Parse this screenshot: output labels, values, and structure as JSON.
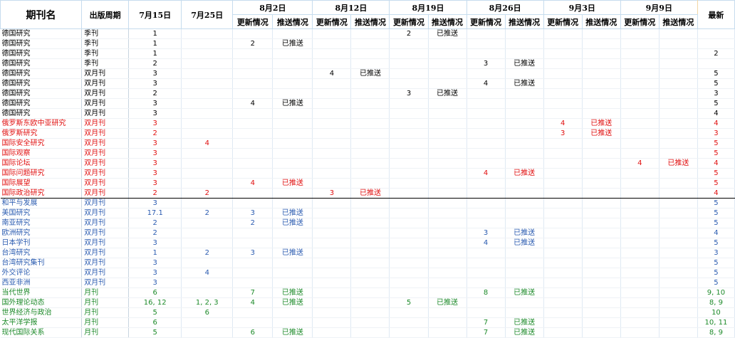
{
  "header": {
    "name": "期刊名",
    "period": "出版周期",
    "jul15": "7月15日",
    "jul25": "7月25日",
    "dates": [
      "8月2日",
      "8月12日",
      "8月19日",
      "8月26日",
      "9月3日",
      "9月9日"
    ],
    "update": "更新情况",
    "push": "推送情况",
    "latest": "最新"
  },
  "rows": [
    {
      "name": "德国研究",
      "period": "季刊",
      "jul15": "1",
      "jul25": "",
      "u": [
        "",
        "",
        "2",
        "",
        "",
        ""
      ],
      "p": [
        "",
        "",
        "已推送",
        "",
        "",
        ""
      ],
      "latest": ""
    },
    {
      "name": "德国研究",
      "period": "季刊",
      "jul15": "1",
      "jul25": "",
      "u": [
        "2",
        "",
        "",
        "",
        "",
        ""
      ],
      "p": [
        "已推送",
        "",
        "",
        "",
        "",
        ""
      ],
      "latest": ""
    },
    {
      "name": "德国研究",
      "period": "季刊",
      "jul15": "1",
      "jul25": "",
      "u": [
        "",
        "",
        "",
        "",
        "",
        ""
      ],
      "p": [
        "",
        "",
        "",
        "",
        "",
        ""
      ],
      "latest": "2"
    },
    {
      "name": "德国研究",
      "period": "季刊",
      "jul15": "2",
      "jul25": "",
      "u": [
        "",
        "",
        "",
        "3",
        "",
        ""
      ],
      "p": [
        "",
        "",
        "",
        "已推送",
        "",
        ""
      ],
      "latest": ""
    },
    {
      "name": "德国研究",
      "period": "双月刊",
      "jul15": "3",
      "jul25": "",
      "u": [
        "",
        "4",
        "",
        "",
        "",
        ""
      ],
      "p": [
        "",
        "已推送",
        "",
        "",
        "",
        ""
      ],
      "latest": "5"
    },
    {
      "name": "德国研究",
      "period": "双月刊",
      "jul15": "3",
      "jul25": "",
      "u": [
        "",
        "",
        "",
        "4",
        "",
        ""
      ],
      "p": [
        "",
        "",
        "",
        "已推送",
        "",
        ""
      ],
      "latest": "5"
    },
    {
      "name": "德国研究",
      "period": "双月刊",
      "jul15": "2",
      "jul25": "",
      "u": [
        "",
        "",
        "3",
        "",
        "",
        ""
      ],
      "p": [
        "",
        "",
        "已推送",
        "",
        "",
        ""
      ],
      "latest": "3"
    },
    {
      "name": "德国研究",
      "period": "双月刊",
      "jul15": "3",
      "jul25": "",
      "u": [
        "4",
        "",
        "",
        "",
        "",
        ""
      ],
      "p": [
        "已推送",
        "",
        "",
        "",
        "",
        ""
      ],
      "latest": "5"
    },
    {
      "name": "德国研究",
      "period": "双月刊",
      "jul15": "3",
      "jul25": "",
      "u": [
        "",
        "",
        "",
        "",
        "",
        ""
      ],
      "p": [
        "",
        "",
        "",
        "",
        "",
        ""
      ],
      "latest": "4"
    },
    {
      "name": "俄罗斯东欧中亚研究",
      "period": "双月刊",
      "jul15": "3",
      "jul25": "",
      "u": [
        "",
        "",
        "",
        "",
        "4",
        ""
      ],
      "p": [
        "",
        "",
        "",
        "",
        "已推送",
        ""
      ],
      "latest": "4"
    },
    {
      "name": "俄罗斯研究",
      "period": "双月刊",
      "jul15": "2",
      "jul25": "",
      "u": [
        "",
        "",
        "",
        "",
        "3",
        ""
      ],
      "p": [
        "",
        "",
        "",
        "",
        "已推送",
        ""
      ],
      "latest": "3"
    },
    {
      "name": "国际安全研究",
      "period": "双月刊",
      "jul15": "3",
      "jul25": "4",
      "u": [
        "",
        "",
        "",
        "",
        "",
        ""
      ],
      "p": [
        "",
        "",
        "",
        "",
        "",
        ""
      ],
      "latest": "5"
    },
    {
      "name": "国际观察",
      "period": "双月刊",
      "jul15": "3",
      "jul25": "",
      "u": [
        "",
        "",
        "",
        "",
        "",
        ""
      ],
      "p": [
        "",
        "",
        "",
        "",
        "",
        ""
      ],
      "latest": "5"
    },
    {
      "name": "国际论坛",
      "period": "双月刊",
      "jul15": "3",
      "jul25": "",
      "u": [
        "",
        "",
        "",
        "",
        "",
        "4"
      ],
      "p": [
        "",
        "",
        "",
        "",
        "",
        "已推送"
      ],
      "latest": "4"
    },
    {
      "name": "国际问题研究",
      "period": "双月刊",
      "jul15": "3",
      "jul25": "",
      "u": [
        "",
        "",
        "",
        "4",
        "",
        ""
      ],
      "p": [
        "",
        "",
        "",
        "已推送",
        "",
        ""
      ],
      "latest": "5"
    },
    {
      "name": "国际展望",
      "period": "双月刊",
      "jul15": "3",
      "jul25": "",
      "u": [
        "4",
        "",
        "",
        "",
        "",
        ""
      ],
      "p": [
        "已推送",
        "",
        "",
        "",
        "",
        ""
      ],
      "latest": "5"
    },
    {
      "name": "国际政治研究",
      "period": "双月刊",
      "jul15": "2",
      "jul25": "2",
      "u": [
        "",
        "3",
        "",
        "",
        "",
        ""
      ],
      "p": [
        "",
        "已推送",
        "",
        "",
        "",
        ""
      ],
      "latest": "4"
    },
    {
      "name": "和平与发展",
      "period": "双月刊",
      "jul15": "3",
      "jul25": "",
      "u": [
        "",
        "",
        "",
        "",
        "",
        ""
      ],
      "p": [
        "",
        "",
        "",
        "",
        "",
        ""
      ],
      "latest": "5"
    },
    {
      "name": "美国研究",
      "period": "双月刊",
      "jul15": "17.1",
      "jul25": "2",
      "u": [
        "3",
        "",
        "",
        "",
        "",
        ""
      ],
      "p": [
        "已推送",
        "",
        "",
        "",
        "",
        ""
      ],
      "latest": "5"
    },
    {
      "name": "南亚研究",
      "period": "双月刊",
      "jul15": "2",
      "jul25": "",
      "u": [
        "2",
        "",
        "",
        "",
        "",
        ""
      ],
      "p": [
        "已推送",
        "",
        "",
        "",
        "",
        ""
      ],
      "latest": "5"
    },
    {
      "name": "欧洲研究",
      "period": "双月刊",
      "jul15": "2",
      "jul25": "",
      "u": [
        "",
        "",
        "",
        "3",
        "",
        ""
      ],
      "p": [
        "",
        "",
        "",
        "已推送",
        "",
        ""
      ],
      "latest": "4"
    },
    {
      "name": "日本学刊",
      "period": "双月刊",
      "jul15": "3",
      "jul25": "",
      "u": [
        "",
        "",
        "",
        "4",
        "",
        ""
      ],
      "p": [
        "",
        "",
        "",
        "已推送",
        "",
        ""
      ],
      "latest": "5"
    },
    {
      "name": "台湾研究",
      "period": "双月刊",
      "jul15": "1",
      "jul25": "2",
      "u": [
        "3",
        "",
        "",
        "",
        "",
        ""
      ],
      "p": [
        "已推送",
        "",
        "",
        "",
        "",
        ""
      ],
      "latest": "3"
    },
    {
      "name": "台湾研究集刊",
      "period": "双月刊",
      "jul15": "3",
      "jul25": "",
      "u": [
        "",
        "",
        "",
        "",
        "",
        ""
      ],
      "p": [
        "",
        "",
        "",
        "",
        "",
        ""
      ],
      "latest": "5"
    },
    {
      "name": "外交评论",
      "period": "双月刊",
      "jul15": "3",
      "jul25": "4",
      "u": [
        "",
        "",
        "",
        "",
        "",
        ""
      ],
      "p": [
        "",
        "",
        "",
        "",
        "",
        ""
      ],
      "latest": "5"
    },
    {
      "name": "西亚非洲",
      "period": "双月刊",
      "jul15": "3",
      "jul25": "",
      "u": [
        "",
        "",
        "",
        "",
        "",
        ""
      ],
      "p": [
        "",
        "",
        "",
        "",
        "",
        ""
      ],
      "latest": "5"
    },
    {
      "name": "当代世界",
      "period": "月刊",
      "jul15": "6",
      "jul25": "",
      "u": [
        "7",
        "",
        "",
        "8",
        "",
        ""
      ],
      "p": [
        "已推送",
        "",
        "",
        "已推送",
        "",
        ""
      ],
      "latest": "9, 10"
    },
    {
      "name": "国外理论动态",
      "period": "月刊",
      "jul15": "16, 12",
      "jul25": "1, 2, 3",
      "u": [
        "4",
        "",
        "5",
        "",
        "",
        ""
      ],
      "p": [
        "已推送",
        "",
        "已推送",
        "",
        "",
        ""
      ],
      "latest": "8, 9"
    },
    {
      "name": "世界经济与政治",
      "period": "月刊",
      "jul15": "5",
      "jul25": "6",
      "u": [
        "",
        "",
        "",
        "",
        "",
        ""
      ],
      "p": [
        "",
        "",
        "",
        "",
        "",
        ""
      ],
      "latest": "10"
    },
    {
      "name": "太平洋学报",
      "period": "月刊",
      "jul15": "6",
      "jul25": "",
      "u": [
        "",
        "",
        "",
        "7",
        "",
        ""
      ],
      "p": [
        "",
        "",
        "",
        "已推送",
        "",
        ""
      ],
      "latest": "10, 11"
    },
    {
      "name": "现代国际关系",
      "period": "月刊",
      "jul15": "5",
      "jul25": "",
      "u": [
        "6",
        "",
        "",
        "7",
        "",
        ""
      ],
      "p": [
        "已推送",
        "",
        "",
        "已推送",
        "",
        ""
      ],
      "latest": "8, 9"
    }
  ],
  "colors": {
    "black": "#000000",
    "red": "#e01010",
    "blue": "#2a5bb0",
    "green": "#1d8a2a",
    "header_border": "#c6dcee"
  }
}
